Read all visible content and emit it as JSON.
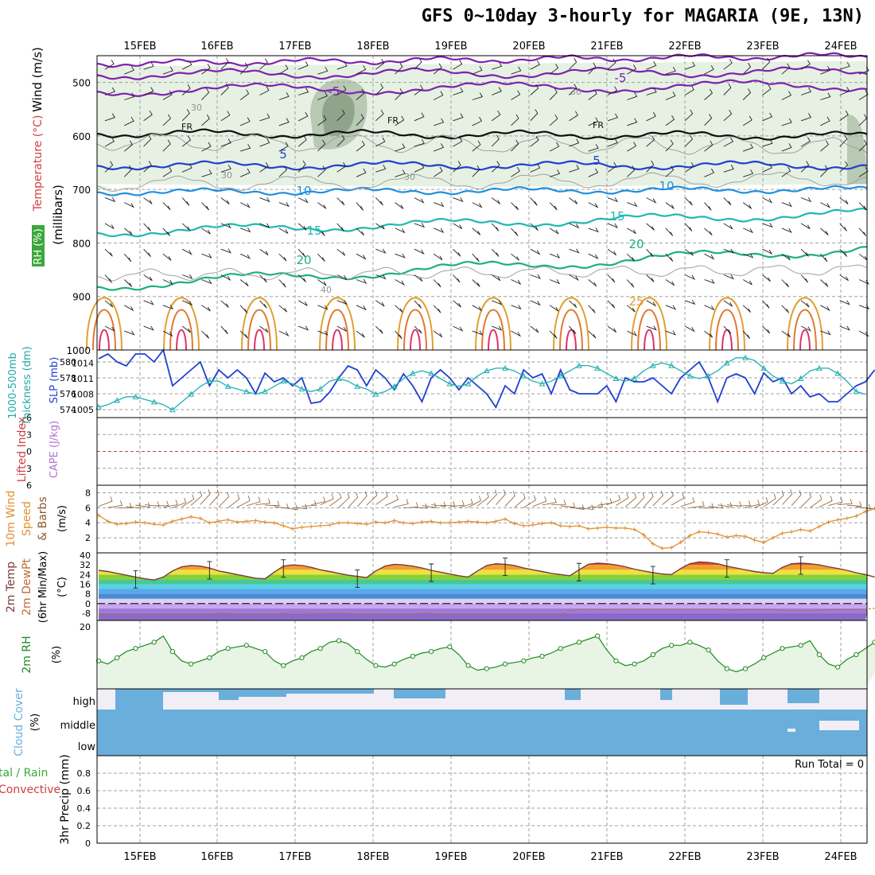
{
  "title": "GFS 0~10day 3-hourly for MAGARIA (9E, 13N)",
  "days": [
    "15FEB",
    "16FEB",
    "17FEB",
    "18FEB",
    "19FEB",
    "20FEB",
    "21FEB",
    "22FEB",
    "23FEB",
    "24FEB"
  ],
  "panel_labels": {
    "upper_wind": "Wind (m/s)",
    "upper_temp": "Temperature (°C)",
    "upper_rh": "RH (%)",
    "upper_mb": "(millibars)",
    "thickness": "Thickness (dm)",
    "thickness_pre": "1000-500mb",
    "slp": "SLP (mb)",
    "cape": "CAPE (J/kg)",
    "lifted": "Lifted Index",
    "wind10_a": "10m Wind",
    "wind10_b": "Speed",
    "wind10_c": "& Barbs",
    "wind10_unit": "(m/s)",
    "temp_a": "2m Temp",
    "temp_b": "2m DewPt",
    "temp_c": "(6hr Min/Max)",
    "temp_unit": "(°C)",
    "rh_a": "2m RH",
    "rh_unit": "(%)",
    "cloud_a": "Cloud Cover",
    "cloud_unit": "(%)",
    "precip_a": "tal / Rain",
    "precip_b": "Convective",
    "precip_c": "3hr Precip (mm)",
    "run_total": "Run Total = 0",
    "cloud_high": "high",
    "cloud_middle": "middle",
    "cloud_low": "low"
  },
  "upper_air": {
    "pressure_ticks": [
      500,
      600,
      700,
      800,
      900,
      1000
    ],
    "contour_labels": [
      "-5",
      "-5",
      "FR",
      "FR",
      "FR",
      "5",
      "5",
      "10",
      "10",
      "15",
      "15",
      "20",
      "20",
      "25",
      "30",
      "30",
      "30",
      "30",
      "40"
    ]
  },
  "chart_data": [
    {
      "type": "line",
      "title": "1000-500mb Thickness (dm) / SLP (mb)",
      "ylabel_left": "Thickness (dm)",
      "ylabel_right": "SLP (mb)",
      "left_ticks": [
        574,
        576,
        578,
        580
      ],
      "right_ticks": [
        1005,
        1008,
        1011,
        1014
      ],
      "ylim_left": [
        573,
        581.5
      ],
      "ylim_right": [
        1003.5,
        1016.5
      ],
      "series": [
        {
          "name": "Thickness",
          "axis": "left",
          "color": "#2040d0",
          "values": [
            580.4,
            581,
            580,
            579.5,
            581,
            581,
            580,
            581.5,
            577,
            578,
            579,
            580,
            577,
            579,
            578,
            579,
            578,
            576,
            578.6,
            577.5,
            578,
            577,
            578,
            574.8,
            575,
            576.2,
            578,
            579.5,
            579,
            577,
            579,
            578,
            576.5,
            578.5,
            577,
            575,
            578,
            579,
            578,
            576.5,
            578,
            577,
            576,
            574.3,
            577,
            576,
            579,
            578,
            578.5,
            576,
            579,
            576.5,
            576,
            576,
            576,
            577,
            575,
            578,
            577.5,
            577.5,
            578,
            577,
            576,
            578,
            579,
            580,
            578,
            575,
            578,
            578.5,
            578,
            576,
            578.6,
            577.5,
            578,
            576,
            577,
            575.6,
            576,
            575,
            575,
            576,
            577,
            577.5,
            579
          ]
        },
        {
          "name": "SLP",
          "axis": "right",
          "color": "#20b0b0",
          "values": [
            1005.5,
            1006,
            1006.8,
            1007.5,
            1007.5,
            1007,
            1006.5,
            1006,
            1005,
            1006.5,
            1008,
            1009.5,
            1010.5,
            1010.5,
            1009.5,
            1009,
            1008.5,
            1008,
            1008.5,
            1009.5,
            1010.5,
            1010,
            1009,
            1008.5,
            1009,
            1010.5,
            1011,
            1010.5,
            1009.5,
            1009,
            1008,
            1008.5,
            1009.5,
            1011,
            1012,
            1012.5,
            1012,
            1011,
            1010,
            1009.5,
            1010,
            1011.5,
            1012.5,
            1013,
            1013,
            1012.5,
            1011.5,
            1010.5,
            1010,
            1010.5,
            1011.5,
            1012.5,
            1013.5,
            1013.5,
            1013,
            1012,
            1011,
            1010.5,
            1011,
            1012.5,
            1013.5,
            1014,
            1013.5,
            1012.5,
            1011.5,
            1011,
            1011.5,
            1012.5,
            1014,
            1015,
            1015,
            1014.5,
            1013,
            1011.5,
            1010.5,
            1010,
            1011,
            1012.5,
            1013,
            1013,
            1012,
            1010.5,
            1008.5,
            1008
          ]
        }
      ]
    },
    {
      "type": "line",
      "title": "CAPE (J/kg) / Lifted Index",
      "left_ticks": [
        6,
        3,
        0,
        -3,
        -6
      ],
      "tick_labels": [
        "6",
        "3",
        "0",
        "3",
        "6"
      ],
      "series": []
    },
    {
      "type": "line",
      "title": "10m Wind Speed & Barbs (m/s)",
      "ylim": [
        0,
        9
      ],
      "y_ticks": [
        2,
        4,
        6,
        8
      ],
      "series": [
        {
          "name": "Speed",
          "color": "#e09030",
          "values": [
            5,
            4.2,
            3.8,
            3.9,
            4.1,
            4,
            3.8,
            3.7,
            4.2,
            4.5,
            4.8,
            4.6,
            4,
            4.2,
            4.4,
            4.1,
            4.2,
            4.3,
            4.1,
            4,
            3.6,
            3.2,
            3.4,
            3.5,
            3.6,
            3.7,
            4,
            4,
            3.9,
            3.8,
            4.1,
            4,
            4.3,
            4,
            3.9,
            4.1,
            4.2,
            4,
            4,
            4.1,
            4.2,
            4.1,
            4,
            4.2,
            4.5,
            3.9,
            3.6,
            3.7,
            3.9,
            4,
            3.6,
            3.5,
            3.6,
            3.2,
            3.3,
            3.4,
            3.3,
            3.3,
            3.1,
            2.4,
            1.2,
            0.6,
            0.7,
            1.4,
            2.3,
            2.8,
            2.7,
            2.5,
            2.1,
            2.3,
            2.2,
            1.7,
            1.4,
            2,
            2.6,
            2.8,
            3.1,
            2.9,
            3.5,
            4.1,
            4.4,
            4.6,
            4.9,
            5.5,
            5.9
          ]
        }
      ]
    },
    {
      "type": "area",
      "title": "2m Temp / 2m DewPt (6hr Min/Max) (°C)",
      "y_ticks": [
        40,
        32,
        24,
        16,
        8,
        0,
        -8
      ],
      "ylim": [
        -14,
        42
      ],
      "series": [
        {
          "name": "Temp",
          "values": [
            27.5,
            26.5,
            25,
            23.5,
            22,
            20.5,
            19.5,
            22,
            27,
            30.5,
            31.5,
            31,
            29.5,
            27,
            25.5,
            24,
            22.5,
            21,
            20.5,
            26,
            31,
            32,
            31.5,
            30,
            28,
            26.5,
            25,
            23.5,
            22.5,
            21.5,
            27,
            31,
            32.5,
            32,
            31,
            29.5,
            27.5,
            26,
            24.5,
            23,
            22,
            27,
            31.5,
            33,
            32.5,
            31.5,
            29.5,
            28,
            26.5,
            25,
            24,
            23,
            28,
            32.5,
            33.5,
            33,
            32,
            30.5,
            28.5,
            27,
            25.5,
            24.5,
            24,
            29,
            33,
            34.5,
            34,
            33,
            31,
            29.5,
            28,
            26.5,
            25.5,
            25,
            30,
            33,
            33.5,
            33,
            32,
            30.5,
            29,
            27.5,
            25.5,
            24,
            22
          ]
        },
        {
          "name": "DewPt",
          "values": [
            -9,
            -9.5,
            -9.5,
            -10,
            -10,
            -10,
            -9.5,
            -9.5,
            -9,
            -9.5,
            -9.5,
            -9,
            -8.5,
            -8,
            -8,
            -8.5,
            -9,
            -9,
            -8.5,
            -8.5,
            -8,
            -7,
            -7,
            -7.5,
            -7.5,
            -7.5,
            -8,
            -8,
            -8.5,
            -8.5,
            -8.5,
            -9,
            -9,
            -9,
            -8.5,
            -8,
            -8,
            -8.5,
            -9,
            -9,
            -9,
            -9,
            -9,
            -8.5,
            -9,
            -9,
            -9,
            -9.5,
            -9.5,
            -9,
            -9,
            -6,
            -4.5,
            -4.5,
            -5,
            -5,
            -4.5,
            -4.5,
            -4.5,
            -4.5,
            -4.5,
            -4.5,
            -4.5,
            -4.5,
            -4.5,
            -4.5,
            -4.5,
            -4.5,
            -5,
            -5.5,
            -5,
            -5,
            -5,
            -5,
            -5.5,
            -6,
            -6,
            -6,
            -5.5,
            -5,
            -5,
            -5,
            -5,
            -4.5,
            -4
          ]
        }
      ]
    },
    {
      "type": "line",
      "title": "2m RH (%)",
      "ylim": [
        0,
        22
      ],
      "y_ticks": [
        20
      ],
      "series": [
        {
          "name": "RH",
          "color": "#208a20",
          "values": [
            9,
            8,
            10,
            12,
            13,
            14,
            15,
            17,
            12,
            9,
            8,
            9,
            10,
            12,
            13,
            13.5,
            14,
            13,
            12,
            9,
            7.5,
            9,
            10,
            12,
            13,
            15,
            15.5,
            14.5,
            12,
            9.5,
            7.5,
            7,
            8,
            9.5,
            10.5,
            11.5,
            12,
            13,
            13.5,
            11,
            7.5,
            6,
            6.5,
            7,
            8,
            8.5,
            9,
            10,
            10.5,
            11.5,
            13,
            14,
            15,
            16,
            17,
            12.5,
            9,
            7.5,
            8,
            9,
            11,
            13,
            14,
            14,
            15,
            14,
            12.5,
            9,
            6.5,
            5.5,
            6.5,
            8,
            10,
            11.5,
            13,
            13.5,
            14,
            15.5,
            11,
            8,
            7,
            9.5,
            11,
            13,
            15,
            17,
            18.5,
            21
          ]
        }
      ]
    },
    {
      "type": "bar",
      "title": "Cloud Cover (%)",
      "levels": [
        "high",
        "middle",
        "low"
      ],
      "series": []
    },
    {
      "type": "bar",
      "title": "3hr Precip (mm)",
      "y_ticks": [
        0,
        0.2,
        0.4,
        0.6,
        0.8
      ],
      "ylim": [
        0,
        1
      ],
      "values": []
    }
  ],
  "colors": {
    "grid": "#a0a0a0",
    "thickness": "#2040d0",
    "slp": "#20b0b0",
    "wind": "#e09030",
    "rh": "#208a20",
    "cloud": "#6aaedc",
    "cloud_bg": "#f2eef6",
    "temp_line": "#1e3cc8",
    "cape_zero": "#d04040"
  }
}
